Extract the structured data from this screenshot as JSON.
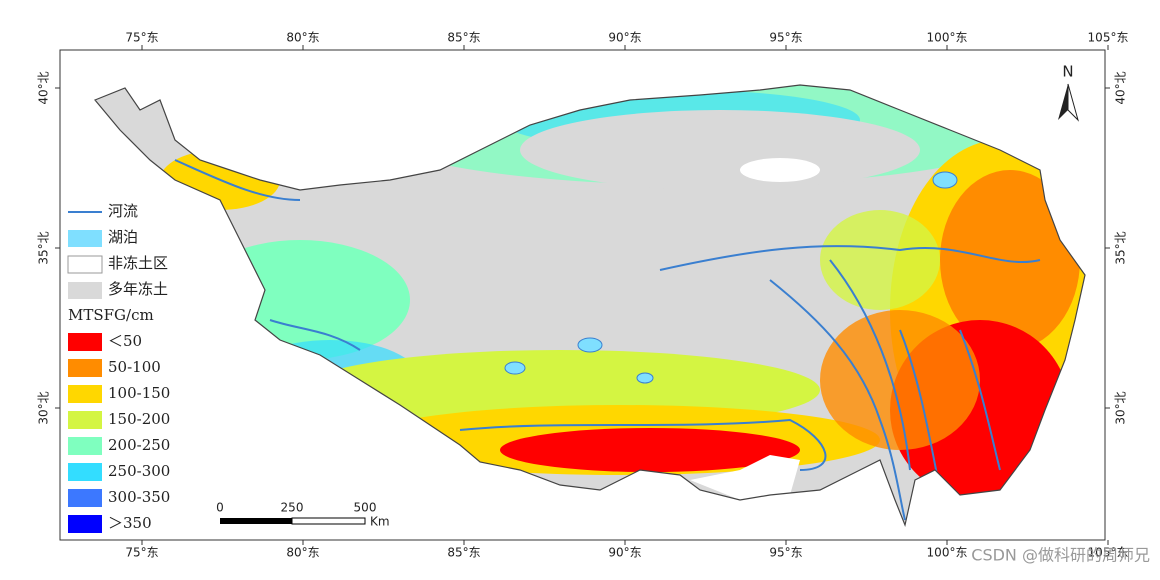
{
  "map": {
    "lon_labels": [
      "75°东",
      "80°东",
      "85°东",
      "90°东",
      "95°东",
      "100°东",
      "105°东"
    ],
    "lat_labels": [
      "40°北",
      "35°北",
      "30°北"
    ],
    "north": "N",
    "legend": {
      "river": "河流",
      "lake": "湖泊",
      "non_permafrost": "非冻土区",
      "permafrost": "多年冻土",
      "title": "MTSFG/cm",
      "classes": [
        "＜50",
        "50-100",
        "100-150",
        "150-200",
        "200-250",
        "250-300",
        "300-350",
        "＞350"
      ]
    },
    "scale_bar": {
      "ticks": [
        "0",
        "250",
        "500"
      ],
      "unit": "Km"
    },
    "watermark": "CSDN @做科研的周师兄"
  }
}
